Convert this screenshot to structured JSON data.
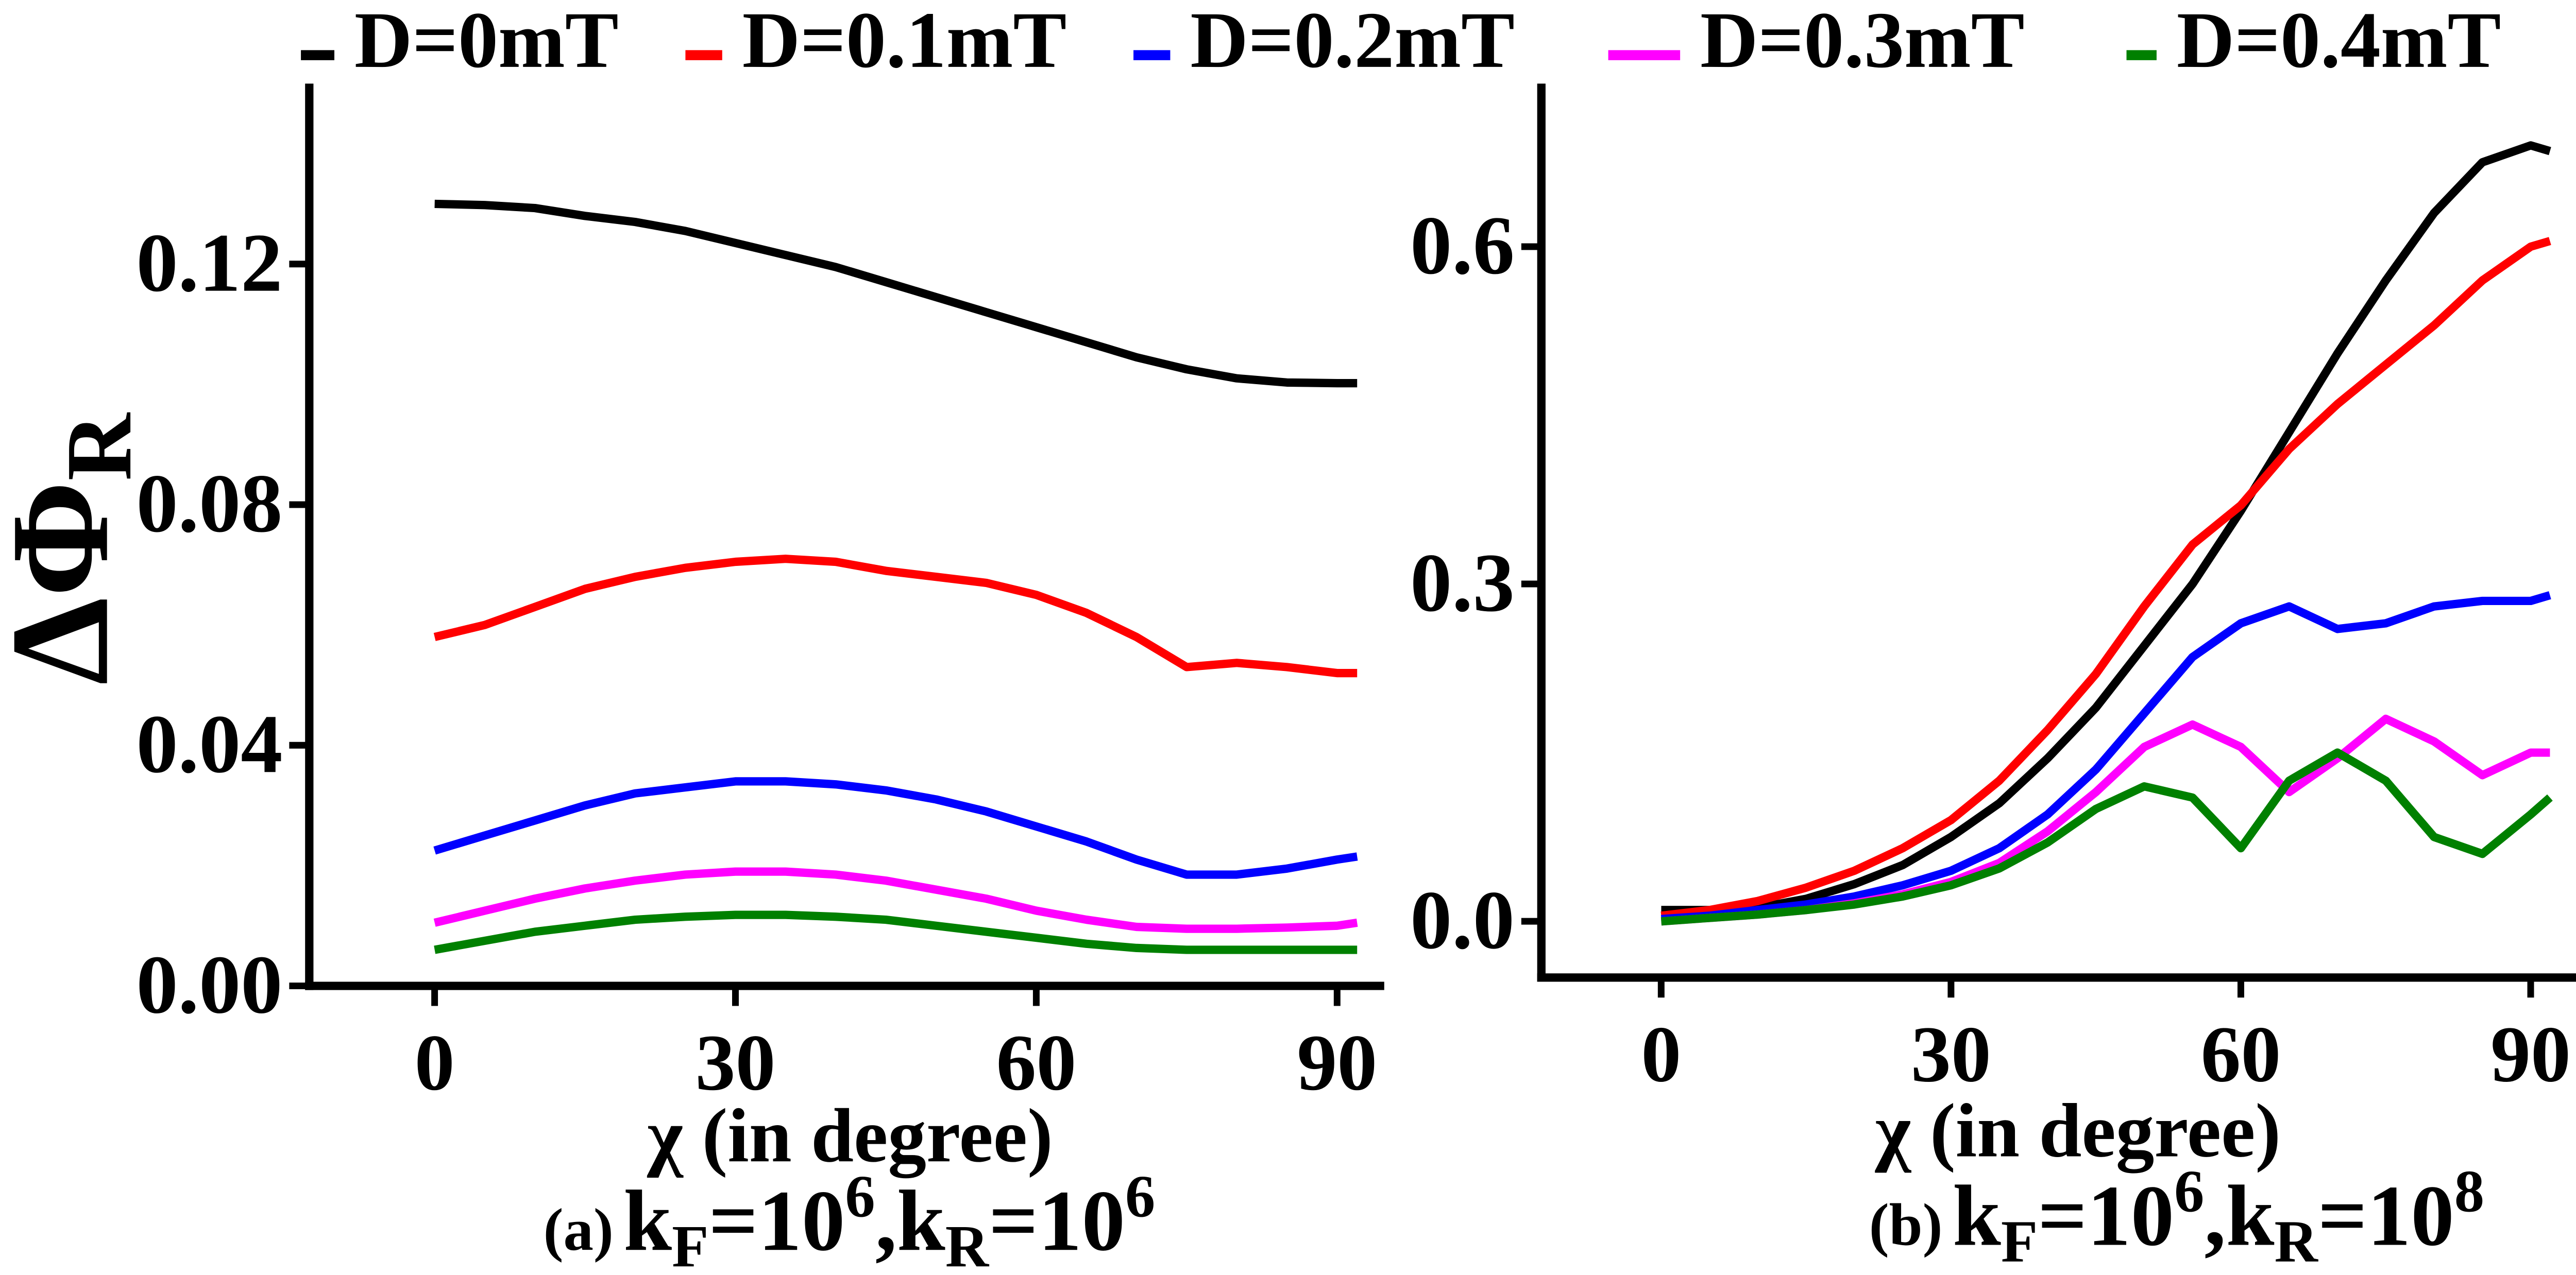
{
  "chart_data": [
    {
      "type": "line",
      "x_label": "χ (in degree)",
      "y_label": {
        "main": "ΔΦ",
        "subscript": "R"
      },
      "caption": [
        {
          "text": "(a)",
          "style": "small"
        },
        {
          "text": "k"
        },
        {
          "text": "F",
          "style": "sub"
        },
        {
          "text": "=10"
        },
        {
          "text": "6",
          "style": "sup"
        },
        {
          "text": ",k"
        },
        {
          "text": "R",
          "style": "sub"
        },
        {
          "text": "=10"
        },
        {
          "text": "6",
          "style": "sup"
        }
      ],
      "x": [
        0,
        5,
        10,
        15,
        20,
        25,
        30,
        35,
        40,
        45,
        50,
        55,
        60,
        65,
        70,
        75,
        80,
        85,
        90,
        92
      ],
      "xlim": [
        -12.5,
        94.7
      ],
      "xticks": [
        0,
        30,
        60,
        90
      ],
      "ylim": [
        0,
        0.15
      ],
      "yticks": [
        {
          "value": 0,
          "label": "0.00"
        },
        {
          "value": 0.04,
          "label": "0.04"
        },
        {
          "value": 0.08,
          "label": "0.08"
        },
        {
          "value": 0.12,
          "label": "0.12"
        }
      ],
      "series": [
        {
          "name": "D=0mT",
          "color": "#000000",
          "values": [
            0.13,
            0.1298,
            0.1293,
            0.128,
            0.127,
            0.1255,
            0.1235,
            0.1215,
            0.1195,
            0.117,
            0.1145,
            0.112,
            0.1095,
            0.107,
            0.1045,
            0.1025,
            0.101,
            0.1003,
            0.1002,
            0.1002
          ]
        },
        {
          "name": "D=0.1mT",
          "color": "#ff0000",
          "values": [
            0.058,
            0.06,
            0.063,
            0.066,
            0.068,
            0.0695,
            0.0705,
            0.071,
            0.0705,
            0.069,
            0.068,
            0.067,
            0.065,
            0.062,
            0.058,
            0.053,
            0.0537,
            0.053,
            0.052,
            0.052
          ]
        },
        {
          "name": "D=0.2mT",
          "color": "#0000ff",
          "values": [
            0.0225,
            0.025,
            0.0275,
            0.03,
            0.032,
            0.033,
            0.034,
            0.034,
            0.0335,
            0.0325,
            0.031,
            0.029,
            0.0265,
            0.024,
            0.021,
            0.0185,
            0.0185,
            0.0195,
            0.021,
            0.0215
          ]
        },
        {
          "name": "D=0.3mT",
          "color": "#ff00ff",
          "values": [
            0.0105,
            0.0125,
            0.0145,
            0.0162,
            0.0175,
            0.0185,
            0.019,
            0.019,
            0.0185,
            0.0175,
            0.016,
            0.0145,
            0.0125,
            0.011,
            0.0098,
            0.0095,
            0.0095,
            0.0097,
            0.01,
            0.0105
          ]
        },
        {
          "name": "D=0.4mT",
          "color": "#008000",
          "values": [
            0.006,
            0.0075,
            0.009,
            0.01,
            0.011,
            0.0115,
            0.0118,
            0.0118,
            0.0115,
            0.011,
            0.01,
            0.009,
            0.008,
            0.007,
            0.0063,
            0.006,
            0.006,
            0.006,
            0.006,
            0.006
          ]
        }
      ]
    },
    {
      "type": "line",
      "x_label": "χ (in degree)",
      "caption": [
        {
          "text": "(b)",
          "style": "small"
        },
        {
          "text": "k"
        },
        {
          "text": "F",
          "style": "sub"
        },
        {
          "text": "=10"
        },
        {
          "text": "6",
          "style": "sup"
        },
        {
          "text": ",k"
        },
        {
          "text": "R",
          "style": "sub"
        },
        {
          "text": "=10"
        },
        {
          "text": "8",
          "style": "sup"
        }
      ],
      "x": [
        0,
        5,
        10,
        15,
        20,
        25,
        30,
        35,
        40,
        45,
        50,
        55,
        60,
        65,
        70,
        75,
        80,
        85,
        90,
        92
      ],
      "xlim": [
        -12.4,
        98
      ],
      "xticks": [
        0,
        30,
        60,
        90
      ],
      "ylim": [
        -0.05,
        0.745
      ],
      "yticks": [
        {
          "value": 0,
          "label": "0.0"
        },
        {
          "value": 0.3,
          "label": "0.3"
        },
        {
          "value": 0.6,
          "label": "0.6"
        }
      ],
      "series": [
        {
          "color": "#000000",
          "values": [
            0.01,
            0.01,
            0.012,
            0.02,
            0.033,
            0.05,
            0.075,
            0.105,
            0.145,
            0.19,
            0.245,
            0.3,
            0.365,
            0.435,
            0.505,
            0.57,
            0.63,
            0.675,
            0.69,
            0.685
          ]
        },
        {
          "color": "#ff0000",
          "values": [
            0.005,
            0.01,
            0.018,
            0.03,
            0.045,
            0.065,
            0.09,
            0.125,
            0.17,
            0.22,
            0.28,
            0.335,
            0.37,
            0.42,
            0.46,
            0.495,
            0.53,
            0.57,
            0.6,
            0.605
          ]
        },
        {
          "color": "#0000ff",
          "values": [
            0.002,
            0.005,
            0.01,
            0.015,
            0.022,
            0.032,
            0.045,
            0.065,
            0.095,
            0.135,
            0.185,
            0.235,
            0.265,
            0.28,
            0.26,
            0.265,
            0.28,
            0.285,
            0.285,
            0.29
          ]
        },
        {
          "color": "#ff00ff",
          "values": [
            0,
            0.003,
            0.006,
            0.01,
            0.016,
            0.024,
            0.035,
            0.052,
            0.08,
            0.115,
            0.155,
            0.175,
            0.155,
            0.115,
            0.145,
            0.18,
            0.16,
            0.13,
            0.15,
            0.15
          ]
        },
        {
          "color": "#008000",
          "values": [
            0,
            0.003,
            0.006,
            0.01,
            0.015,
            0.022,
            0.032,
            0.047,
            0.07,
            0.1,
            0.12,
            0.11,
            0.065,
            0.125,
            0.15,
            0.125,
            0.075,
            0.06,
            0.095,
            0.11
          ]
        }
      ]
    }
  ]
}
